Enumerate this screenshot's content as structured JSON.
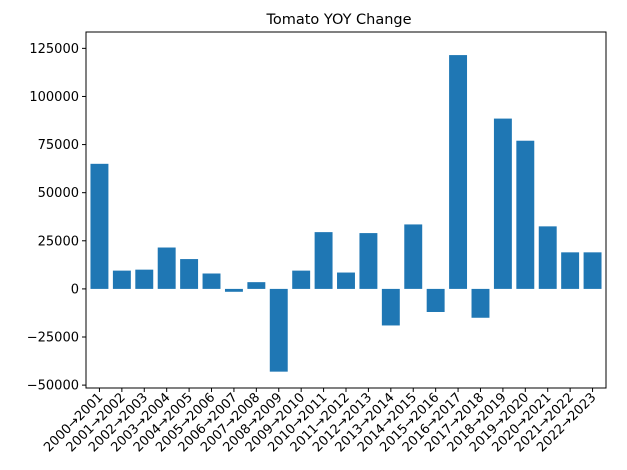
{
  "chart_data": {
    "type": "bar",
    "title": "Tomato YOY Change",
    "xlabel": "",
    "ylabel": "",
    "categories": [
      "2000→2001",
      "2001→2002",
      "2002→2003",
      "2003→2004",
      "2004→2005",
      "2005→2006",
      "2006→2007",
      "2007→2008",
      "2008→2009",
      "2009→2010",
      "2010→2011",
      "2011→2012",
      "2012→2013",
      "2013→2014",
      "2014→2015",
      "2015→2016",
      "2016→2017",
      "2017→2018",
      "2018→2019",
      "2019→2020",
      "2020→2021",
      "2021→2022",
      "2022→2023"
    ],
    "values": [
      65000,
      9500,
      10000,
      21500,
      15500,
      8000,
      -1500,
      3500,
      -43000,
      9500,
      29500,
      8500,
      29000,
      -19000,
      33500,
      -12000,
      121500,
      -15000,
      88500,
      77000,
      32500,
      19000,
      19000
    ],
    "ylim": [
      -51500,
      133500
    ],
    "yticks": [
      -50000,
      -25000,
      0,
      25000,
      50000,
      75000,
      100000,
      125000
    ],
    "bar_color": "#1f77b4",
    "grid": false,
    "legend": false
  }
}
